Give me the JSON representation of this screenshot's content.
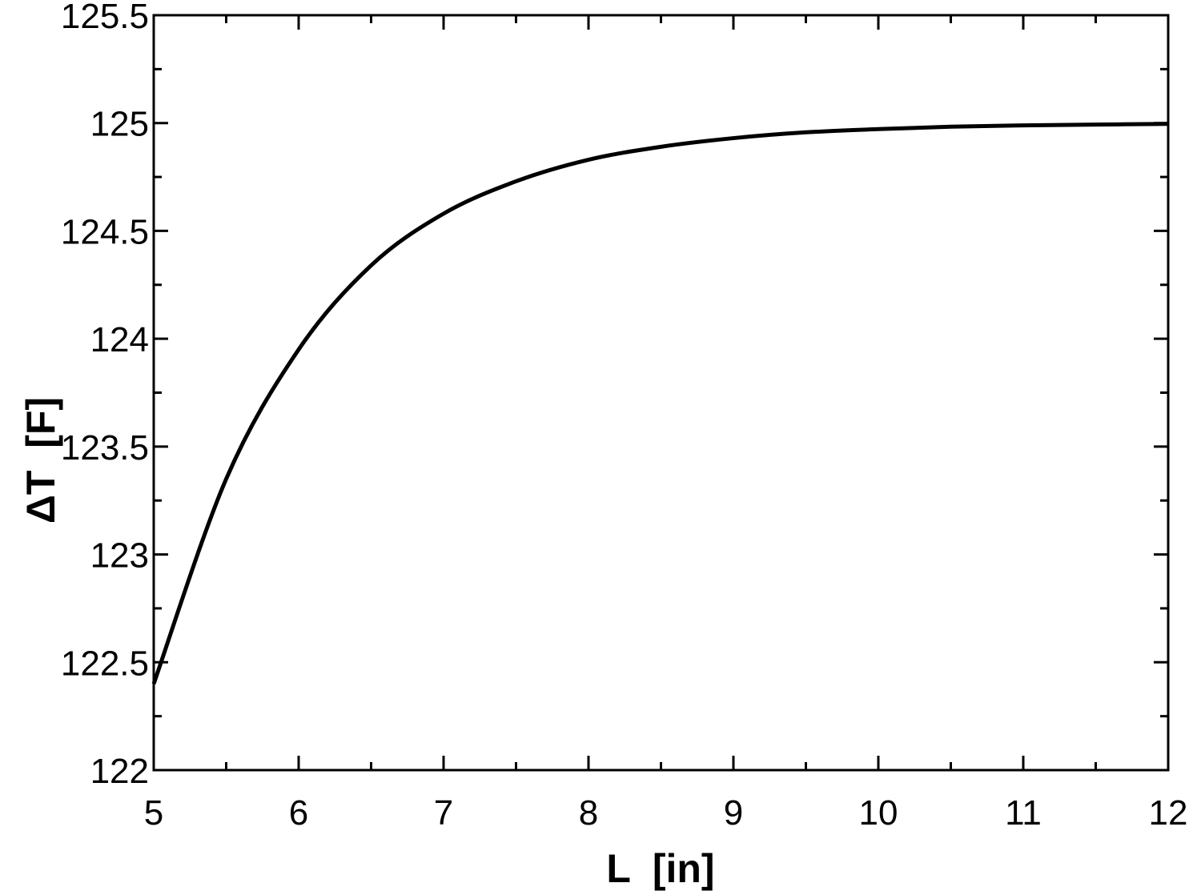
{
  "chart_data": {
    "type": "line",
    "title": "",
    "xlabel": "L  [in]",
    "ylabel": "ΔT  [F]",
    "xlim": [
      5,
      12
    ],
    "ylim": [
      122,
      125.5
    ],
    "x_ticks": [
      5,
      6,
      7,
      8,
      9,
      10,
      11,
      12
    ],
    "x_tick_labels": [
      "5",
      "6",
      "7",
      "8",
      "9",
      "10",
      "11",
      "12"
    ],
    "x_minor_step": 0.5,
    "y_ticks": [
      122,
      122.5,
      123,
      123.5,
      124,
      124.5,
      125,
      125.5
    ],
    "y_tick_labels": [
      "122",
      "122.5",
      "123",
      "123.5",
      "124",
      "124.5",
      "125",
      "125.5"
    ],
    "y_minor_step": 0.25,
    "grid": false,
    "legend": "none",
    "line_color": "#000000",
    "series": [
      {
        "x": [
          5,
          5.5,
          6,
          6.5,
          7,
          7.5,
          8,
          8.5,
          9,
          9.5,
          10,
          10.5,
          11,
          11.5,
          12
        ],
        "y": [
          122.4,
          123.35,
          123.95,
          124.34,
          124.58,
          124.73,
          124.83,
          124.89,
          124.93,
          124.957,
          124.972,
          124.983,
          124.989,
          124.993,
          124.996
        ]
      }
    ]
  }
}
